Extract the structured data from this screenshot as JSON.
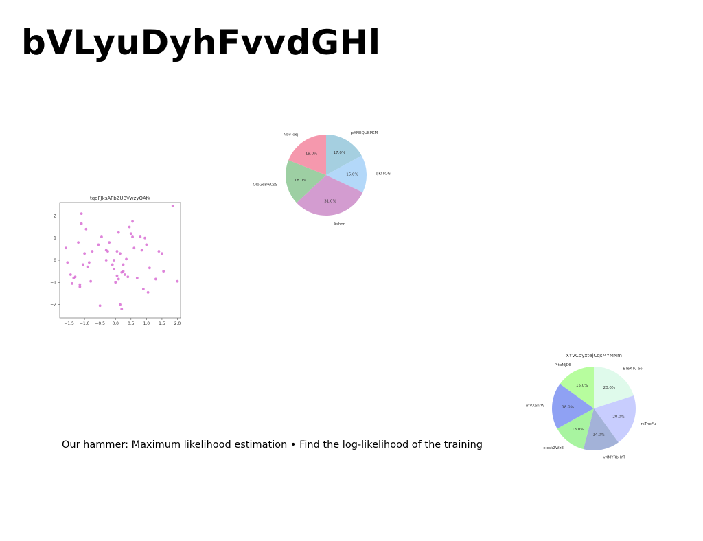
{
  "slide": {
    "title": "bVLyuDyhFvvdGHl",
    "body_text": "Our hammer: Maximum likelihood estimation • Find the log-likelihood of the training"
  },
  "chart_data": [
    {
      "type": "pie",
      "title": "",
      "labels": [
        "pXNEQUBPKM",
        "zjKfTOG",
        "Xshor",
        "OlbGeBwOsS",
        "NbvToej"
      ],
      "values": [
        17.0,
        15.0,
        31.0,
        18.0,
        19.0
      ],
      "value_labels": [
        "17.0%",
        "15.0%",
        "31.0%",
        "18.0%",
        "19.0%"
      ],
      "colors": [
        "#a5cfe0",
        "#b3d8f9",
        "#d39cd0",
        "#9dcfa3",
        "#f598ad"
      ],
      "start": "top, clockwise"
    },
    {
      "type": "scatter",
      "title": "tqqFJksAFbZUBVwzyQAfk",
      "color": "#d86fd4",
      "xlim": [
        -1.8,
        2.1
      ],
      "ylim": [
        -2.6,
        2.6
      ],
      "xticks": [
        -1.5,
        -1.0,
        -0.5,
        0.0,
        0.5,
        1.0,
        1.5,
        2.0
      ],
      "xtick_labels": [
        "−1.5",
        "−1.0",
        "−0.5",
        "0.0",
        "0.5",
        "1.0",
        "1.5",
        "2.0"
      ],
      "yticks": [
        -2,
        -1,
        0,
        1,
        2
      ],
      "ytick_labels": [
        "−2",
        "−1",
        "0",
        "1",
        "2"
      ],
      "x": [
        -1.6,
        -1.55,
        -1.45,
        -1.4,
        -1.35,
        -1.3,
        -1.2,
        -1.15,
        -1.15,
        -1.1,
        -1.1,
        -1.05,
        -1.0,
        -0.95,
        -0.9,
        -0.85,
        -0.8,
        -0.75,
        -0.55,
        -0.5,
        -0.45,
        -0.3,
        -0.3,
        -0.25,
        -0.2,
        -0.1,
        -0.05,
        -0.05,
        0.0,
        0.05,
        0.05,
        0.1,
        0.1,
        0.15,
        0.15,
        0.2,
        0.2,
        0.25,
        0.25,
        0.3,
        0.35,
        0.4,
        0.45,
        0.5,
        0.55,
        0.55,
        0.6,
        0.7,
        0.8,
        0.85,
        0.9,
        0.95,
        1.0,
        1.05,
        1.1,
        1.3,
        1.4,
        1.5,
        1.55,
        1.85,
        2.0
      ],
      "y": [
        0.55,
        -0.1,
        -0.65,
        -1.05,
        -0.8,
        -0.75,
        0.8,
        -1.1,
        -1.2,
        2.1,
        1.65,
        -0.2,
        0.3,
        1.4,
        -0.3,
        -0.1,
        -0.95,
        0.4,
        0.7,
        -2.05,
        1.05,
        0.45,
        0.0,
        0.4,
        0.8,
        -0.2,
        0.0,
        -0.4,
        -1.0,
        -0.7,
        0.4,
        1.25,
        -0.85,
        0.3,
        -2.0,
        -0.55,
        -2.2,
        -0.5,
        -0.2,
        -0.65,
        0.05,
        -0.75,
        1.5,
        1.2,
        1.75,
        1.05,
        0.55,
        -0.8,
        1.05,
        0.45,
        -1.3,
        1.0,
        0.7,
        -1.45,
        -0.35,
        -0.85,
        0.4,
        0.3,
        -0.5,
        2.45,
        -0.95
      ]
    },
    {
      "type": "pie",
      "title": "XYVCpyxtejCqsMYMNm",
      "labels": [
        "BTeXTv ao",
        "rsTheFu",
        "vXMYRbIIYT",
        "elcskZWzE",
        "mVXahfW",
        "P tpMjDE"
      ],
      "values": [
        20.0,
        20.0,
        14.0,
        13.0,
        18.0,
        15.0
      ],
      "value_labels": [
        "20.0%",
        "20.0%",
        "14.0%",
        "13.0%",
        "18.0%",
        "15.0%"
      ],
      "colors": [
        "#dffaeb",
        "#c8cdfe",
        "#a3b2d8",
        "#a8f4a0",
        "#8fa1f3",
        "#b7fd9e"
      ],
      "start": "top, clockwise"
    }
  ]
}
